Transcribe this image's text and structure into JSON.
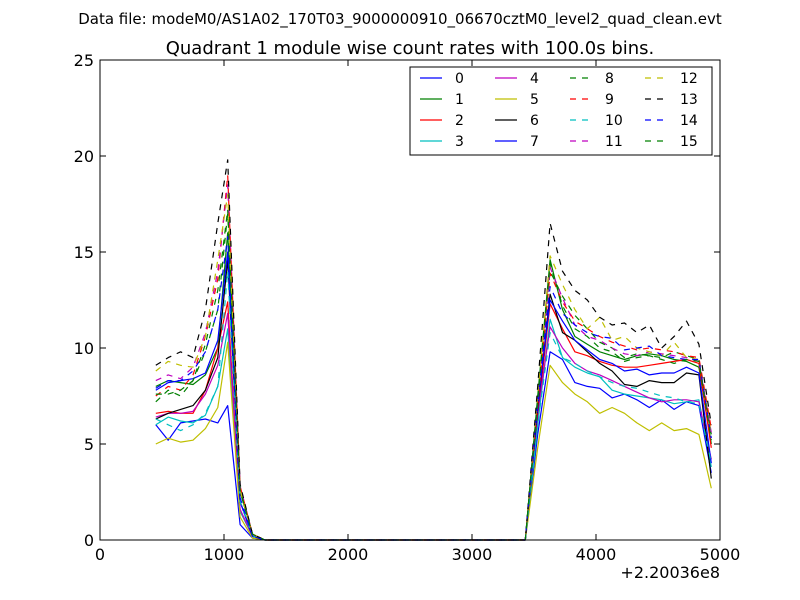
{
  "chart_data": {
    "type": "line",
    "suptitle": "Data file: modeM0/AS1A02_170T03_9000000910_06670cztM0_level2_quad_clean.evt",
    "title": "Quadrant 1 module wise count rates with 100.0s bins.",
    "xlabel": "",
    "ylabel": "",
    "x_offset_label": "+2.20036e8",
    "xlim": [
      0,
      5000
    ],
    "ylim": [
      0,
      25
    ],
    "xticks": [
      0,
      1000,
      2000,
      3000,
      4000,
      5000
    ],
    "xtick_labels": [
      "0",
      "1000",
      "2000",
      "3000",
      "4000",
      "5000"
    ],
    "yticks": [
      0,
      5,
      10,
      15,
      20,
      25
    ],
    "ytick_labels": [
      "0",
      "5",
      "10",
      "15",
      "20",
      "25"
    ],
    "grid": false,
    "legend_position": "top-right",
    "x": [
      450,
      550,
      650,
      750,
      850,
      950,
      1030,
      1130,
      1230,
      1330,
      3430,
      3530,
      3630,
      3730,
      3830,
      3930,
      4030,
      4130,
      4230,
      4330,
      4430,
      4530,
      4630,
      4730,
      4830,
      4930
    ],
    "series": [
      {
        "name": "0",
        "color": "#0000ff",
        "dash": "solid",
        "values": [
          6.0,
          5.2,
          6.1,
          6.2,
          6.3,
          6.1,
          7.0,
          0.8,
          0.1,
          0,
          0,
          5.5,
          9.8,
          9.4,
          8.2,
          8.0,
          7.9,
          7.4,
          7.6,
          7.3,
          6.9,
          7.3,
          6.8,
          7.2,
          7.0,
          3.5
        ]
      },
      {
        "name": "1",
        "color": "#008000",
        "dash": "solid",
        "values": [
          8.0,
          8.3,
          8.2,
          8.1,
          8.6,
          10.0,
          16.0,
          2.5,
          0.3,
          0,
          0,
          7.5,
          14.6,
          12.0,
          10.6,
          10.2,
          9.8,
          9.6,
          9.4,
          9.6,
          9.7,
          9.6,
          9.4,
          9.3,
          9.0,
          5.0
        ]
      },
      {
        "name": "2",
        "color": "#ff0000",
        "dash": "solid",
        "values": [
          6.6,
          6.7,
          6.6,
          6.6,
          7.8,
          10.0,
          12.4,
          1.5,
          0.2,
          0,
          0,
          6.5,
          12.3,
          11.0,
          9.8,
          9.6,
          9.3,
          9.1,
          9.0,
          9.0,
          9.1,
          9.2,
          9.3,
          9.4,
          9.2,
          4.8
        ]
      },
      {
        "name": "3",
        "color": "#00bfbf",
        "dash": "solid",
        "values": [
          6.0,
          6.4,
          6.2,
          6.1,
          6.5,
          8.0,
          11.0,
          1.5,
          0.2,
          0,
          0,
          6.0,
          11.5,
          9.5,
          9.0,
          8.7,
          8.5,
          7.8,
          7.6,
          7.5,
          7.4,
          7.3,
          7.1,
          7.2,
          7.3,
          3.8
        ]
      },
      {
        "name": "4",
        "color": "#bf00bf",
        "dash": "solid",
        "values": [
          6.4,
          6.6,
          6.6,
          6.7,
          7.6,
          9.1,
          11.8,
          1.6,
          0.2,
          0,
          0,
          6.6,
          11.1,
          10.0,
          9.2,
          8.8,
          8.6,
          8.3,
          8.0,
          7.7,
          7.4,
          7.2,
          7.3,
          7.3,
          7.2,
          4.2
        ]
      },
      {
        "name": "5",
        "color": "#bfbf00",
        "dash": "solid",
        "values": [
          5.0,
          5.3,
          5.1,
          5.2,
          5.8,
          6.9,
          10.3,
          1.2,
          0.1,
          0,
          0,
          4.8,
          9.1,
          8.2,
          7.6,
          7.2,
          6.6,
          6.9,
          6.6,
          6.1,
          5.7,
          6.1,
          5.7,
          5.8,
          5.5,
          2.7
        ]
      },
      {
        "name": "6",
        "color": "#000000",
        "dash": "solid",
        "values": [
          6.3,
          6.6,
          6.8,
          7.0,
          7.8,
          9.5,
          14.6,
          2.0,
          0.2,
          0,
          0,
          6.8,
          12.8,
          10.8,
          10.4,
          9.8,
          9.2,
          8.8,
          8.1,
          8.0,
          8.3,
          8.2,
          8.2,
          8.7,
          8.6,
          3.2
        ]
      },
      {
        "name": "7",
        "color": "#0000ff",
        "dash": "solid",
        "values": [
          7.8,
          8.2,
          8.3,
          8.4,
          8.7,
          10.4,
          15.0,
          2.0,
          0.2,
          0,
          0,
          7.0,
          12.5,
          11.4,
          10.4,
          9.9,
          9.4,
          9.2,
          8.8,
          8.9,
          8.6,
          8.7,
          8.7,
          9.0,
          8.7,
          4.0
        ]
      },
      {
        "name": "8",
        "color": "#008000",
        "dash": "dashed",
        "values": [
          7.2,
          7.8,
          7.5,
          8.3,
          9.8,
          12.0,
          17.0,
          2.6,
          0.3,
          0,
          0,
          7.4,
          14.0,
          12.7,
          11.7,
          11.0,
          10.3,
          10.0,
          9.5,
          9.7,
          9.6,
          9.5,
          9.8,
          9.6,
          9.4,
          5.5
        ]
      },
      {
        "name": "9",
        "color": "#ff0000",
        "dash": "dashed",
        "values": [
          7.5,
          8.0,
          7.8,
          8.6,
          10.6,
          13.6,
          19.0,
          2.8,
          0.3,
          0,
          0,
          7.0,
          13.9,
          12.4,
          11.4,
          11.0,
          10.6,
          10.3,
          10.1,
          9.9,
          10.0,
          9.9,
          9.8,
          9.6,
          9.5,
          5.8
        ]
      },
      {
        "name": "10",
        "color": "#00bfbf",
        "dash": "dashed",
        "values": [
          6.3,
          6.0,
          5.7,
          6.0,
          6.6,
          8.0,
          14.0,
          2.0,
          0.2,
          0,
          0,
          6.0,
          10.8,
          9.5,
          9.2,
          8.8,
          8.5,
          8.2,
          8.0,
          7.9,
          7.7,
          7.5,
          7.4,
          7.2,
          7.1,
          4.0
        ]
      },
      {
        "name": "11",
        "color": "#bf00bf",
        "dash": "dashed",
        "values": [
          8.3,
          8.6,
          8.4,
          9.0,
          10.8,
          14.0,
          18.5,
          2.8,
          0.3,
          0,
          0,
          7.2,
          14.2,
          12.6,
          11.2,
          10.6,
          10.4,
          10.0,
          9.7,
          9.6,
          9.8,
          9.7,
          9.6,
          9.5,
          9.3,
          5.6
        ]
      },
      {
        "name": "12",
        "color": "#bfbf00",
        "dash": "dashed",
        "values": [
          8.8,
          9.3,
          9.1,
          9.0,
          10.6,
          14.6,
          18.0,
          2.6,
          0.3,
          0,
          0,
          7.6,
          14.8,
          13.3,
          12.0,
          11.0,
          11.6,
          10.4,
          10.6,
          10.0,
          9.8,
          9.6,
          10.3,
          9.5,
          9.4,
          5.5
        ]
      },
      {
        "name": "13",
        "color": "#000000",
        "dash": "dashed",
        "values": [
          9.1,
          9.5,
          9.8,
          9.5,
          12.0,
          16.5,
          19.8,
          2.9,
          0.3,
          0,
          0,
          8.0,
          16.5,
          14.0,
          13.0,
          12.5,
          11.6,
          11.2,
          11.3,
          10.8,
          11.2,
          10.0,
          10.6,
          11.4,
          10.2,
          6.0
        ]
      },
      {
        "name": "14",
        "color": "#0000ff",
        "dash": "dashed",
        "values": [
          7.9,
          8.3,
          8.3,
          8.8,
          9.8,
          12.0,
          15.8,
          2.2,
          0.2,
          0,
          0,
          7.2,
          13.2,
          11.8,
          11.2,
          10.8,
          10.6,
          10.5,
          9.9,
          10.0,
          10.1,
          9.6,
          9.5,
          9.4,
          9.4,
          5.3
        ]
      },
      {
        "name": "15",
        "color": "#008000",
        "dash": "dashed",
        "values": [
          7.6,
          7.6,
          7.8,
          8.3,
          10.2,
          13.0,
          17.2,
          2.6,
          0.3,
          0,
          0,
          7.3,
          14.4,
          12.2,
          11.0,
          10.6,
          10.0,
          9.8,
          9.3,
          9.5,
          9.6,
          9.4,
          9.2,
          9.4,
          9.3,
          5.2
        ]
      }
    ]
  }
}
